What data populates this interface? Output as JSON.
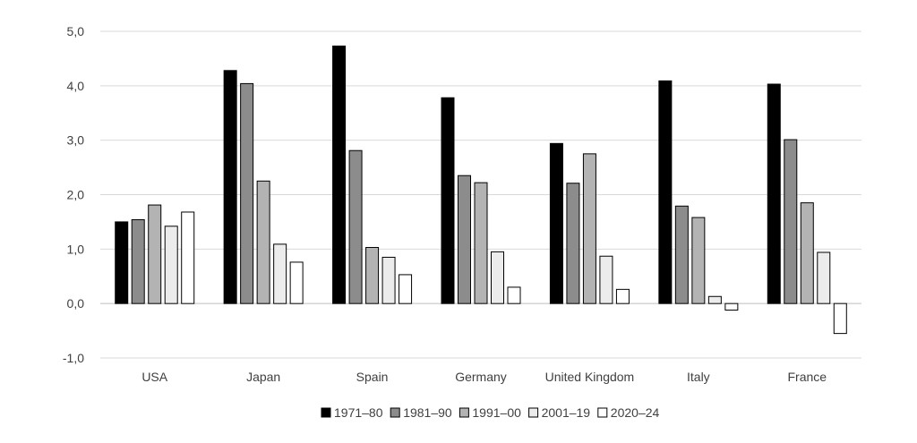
{
  "chart_data": {
    "type": "bar",
    "title": "",
    "xlabel": "",
    "ylabel": "",
    "ylim": [
      -1,
      5
    ],
    "yticks": [
      5,
      4,
      3,
      2,
      1,
      0,
      -1
    ],
    "ytick_labels": [
      "5,0",
      "4,0",
      "3,0",
      "2,0",
      "1,0",
      "0,0",
      "-1,0"
    ],
    "grid": true,
    "legend_position": "bottom",
    "categories": [
      "USA",
      "Japan",
      "Spain",
      "Germany",
      "United Kingdom",
      "Italy",
      "France"
    ],
    "series": [
      {
        "name": "1971–80",
        "color": "#000000",
        "values": [
          1.5,
          4.28,
          4.73,
          3.78,
          2.94,
          4.09,
          4.03
        ]
      },
      {
        "name": "1981–90",
        "color": "#8c8c8c",
        "values": [
          1.54,
          4.04,
          2.81,
          2.35,
          2.21,
          1.79,
          3.01
        ]
      },
      {
        "name": "1991–00",
        "color": "#b3b3b3",
        "values": [
          1.81,
          2.25,
          1.03,
          2.22,
          2.75,
          1.58,
          1.85
        ]
      },
      {
        "name": "2001–19",
        "color": "#ececec",
        "values": [
          1.42,
          1.09,
          0.85,
          0.95,
          0.87,
          0.13,
          0.94
        ]
      },
      {
        "name": "2020–24",
        "color": "#ffffff",
        "values": [
          1.68,
          0.76,
          0.53,
          0.3,
          0.26,
          -0.12,
          -0.55
        ]
      }
    ]
  }
}
